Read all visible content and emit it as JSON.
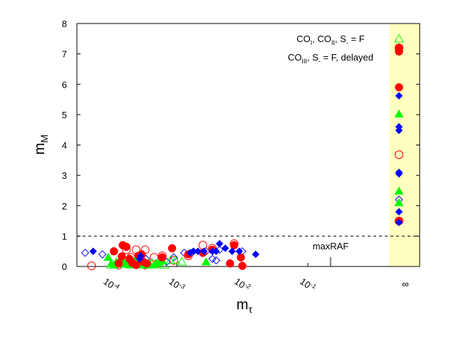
{
  "chart_data": {
    "type": "scatter",
    "xlabel": "m",
    "xlabel_sub": "τ",
    "ylabel": "m",
    "ylabel_sub": "M",
    "x_scale": "log",
    "xlim": [
      3e-05,
      1
    ],
    "ylim": [
      0,
      8
    ],
    "x_ticks": [
      {
        "base": "10",
        "exp": "-4",
        "value": 0.0001
      },
      {
        "base": "10",
        "exp": "-3",
        "value": 0.001
      },
      {
        "base": "10",
        "exp": "-2",
        "value": 0.01
      },
      {
        "base": "10",
        "exp": "-1",
        "value": 0.1
      }
    ],
    "x_infinity_label": "∞",
    "y_ticks": [
      "0",
      "1",
      "2",
      "3",
      "4",
      "5",
      "6",
      "7",
      "8"
    ],
    "grid": false,
    "legend_position": "top-right",
    "legend": {
      "line1": {
        "prefix_1": "CO",
        "sub_1": "I",
        "prefix_2": ", CO",
        "sub_2": "II",
        "prefix_3": ", S",
        "sub_3": "-",
        "suffix": " = F"
      },
      "line2": {
        "prefix_1": "CO",
        "sub_1": "III",
        "prefix_2": ", S",
        "sub_2": "-",
        "suffix": " = F, delayed"
      }
    },
    "reference_line": {
      "y": 1,
      "label": "maxRAF"
    },
    "infinity_band_color": "#ffffc0",
    "colors": {
      "red": "#ff0000",
      "blue": "#0000ff",
      "green": "#00ff00"
    },
    "series": [
      {
        "marker": "circle",
        "filled": true,
        "color": "red",
        "points": [
          [
            0.00011,
            0.5
          ],
          [
            0.00013,
            0.1
          ],
          [
            0.000145,
            0.33
          ],
          [
            0.00015,
            0.7
          ],
          [
            0.00017,
            0.65
          ],
          [
            0.00019,
            0.25
          ],
          [
            0.00021,
            0.12
          ],
          [
            0.00024,
            0.05
          ],
          [
            0.00026,
            0.35
          ],
          [
            0.00029,
            0.4
          ],
          [
            0.00031,
            0.15
          ],
          [
            0.00035,
            0.1
          ],
          [
            0.0006,
            0.3
          ],
          [
            0.00085,
            0.6
          ],
          [
            0.0015,
            0.4
          ],
          [
            0.0025,
            0.45
          ],
          [
            0.0035,
            0.55
          ],
          [
            0.0065,
            0.1
          ],
          [
            0.0075,
            0.7
          ],
          [
            0.0095,
            0.3
          ],
          [
            0.01,
            0.02
          ]
        ],
        "infinity": [
          7.08,
          7.2,
          5.9,
          1.5
        ]
      },
      {
        "marker": "circle",
        "filled": false,
        "color": "red",
        "points": [
          [
            5e-05,
            0.02
          ],
          [
            0.00013,
            0.05
          ],
          [
            0.00017,
            0.55
          ],
          [
            0.0002,
            0.3
          ],
          [
            0.00024,
            0.55
          ],
          [
            0.00028,
            0.35
          ],
          [
            0.00033,
            0.55
          ],
          [
            0.00033,
            0.05
          ],
          [
            0.00045,
            0.3
          ],
          [
            0.0005,
            0.08
          ],
          [
            0.0006,
            0.35
          ],
          [
            0.0009,
            0.2
          ],
          [
            0.0015,
            0.35
          ],
          [
            0.0025,
            0.7
          ],
          [
            0.0035,
            0.6
          ],
          [
            0.0075,
            0.75
          ]
        ],
        "infinity": [
          7.2,
          3.68,
          1.5
        ]
      },
      {
        "marker": "diamond",
        "filled": true,
        "color": "blue",
        "points": [
          [
            5.3e-05,
            0.5
          ],
          [
            0.00027,
            0.25
          ],
          [
            0.00028,
            0.35
          ],
          [
            0.0016,
            0.45
          ],
          [
            0.0018,
            0.5
          ],
          [
            0.0021,
            0.5
          ],
          [
            0.0026,
            0.5
          ],
          [
            0.0035,
            0.5
          ],
          [
            0.004,
            0.5
          ],
          [
            0.0045,
            0.75
          ],
          [
            0.0055,
            0.6
          ],
          [
            0.007,
            0.5
          ],
          [
            0.009,
            0.5
          ],
          [
            0.016,
            0.4
          ]
        ],
        "infinity": [
          5.62,
          4.6,
          4.48,
          3.1,
          3.05,
          1.8,
          1.45
        ]
      },
      {
        "marker": "diamond",
        "filled": false,
        "color": "blue",
        "points": [
          [
            4e-05,
            0.45
          ],
          [
            7.35e-05,
            0.4
          ],
          [
            0.00024,
            0.2
          ],
          [
            0.00034,
            0.25
          ],
          [
            0.0007,
            0.15
          ],
          [
            0.0009,
            0.3
          ],
          [
            0.0013,
            0.45
          ],
          [
            0.0017,
            0.45
          ],
          [
            0.0028,
            0.5
          ],
          [
            0.0035,
            0.25
          ],
          [
            0.004,
            0.2
          ],
          [
            0.0045,
            0.55
          ],
          [
            0.01,
            0.5
          ]
        ],
        "infinity": [
          2.2
        ]
      },
      {
        "marker": "triangle",
        "filled": true,
        "color": "green",
        "points": [
          [
            9e-05,
            0.3
          ],
          [
            0.0001,
            0.1
          ],
          [
            0.00011,
            0.05
          ],
          [
            0.00012,
            0.15
          ],
          [
            0.00013,
            0.1
          ],
          [
            0.00015,
            0.2
          ],
          [
            0.00017,
            0.1
          ],
          [
            0.00019,
            0.05
          ],
          [
            0.00021,
            0.12
          ],
          [
            0.00023,
            0.2
          ],
          [
            0.00025,
            0.08
          ],
          [
            0.00028,
            0.15
          ],
          [
            0.00031,
            0.1
          ],
          [
            0.00034,
            0.05
          ],
          [
            0.00038,
            0.1
          ],
          [
            0.00045,
            0.05
          ],
          [
            0.0005,
            0.1
          ],
          [
            0.00055,
            0.15
          ],
          [
            0.0006,
            0.2
          ],
          [
            0.0028,
            0.15
          ]
        ],
        "infinity": [
          7.22,
          5.02,
          2.48,
          2.1
        ]
      },
      {
        "marker": "triangle",
        "filled": false,
        "color": "green",
        "points": [
          [
            0.0001,
            0.05
          ],
          [
            0.00013,
            0.12
          ],
          [
            0.00016,
            0.08
          ],
          [
            0.00019,
            0.15
          ],
          [
            0.00022,
            0.1
          ],
          [
            0.00026,
            0.05
          ],
          [
            0.0003,
            0.08
          ],
          [
            0.00036,
            0.05
          ],
          [
            0.00042,
            0.12
          ],
          [
            0.0005,
            0.1
          ],
          [
            0.00065,
            0.05
          ],
          [
            0.0008,
            0.2
          ],
          [
            0.00095,
            0.2
          ],
          [
            0.0012,
            0.15
          ]
        ],
        "infinity": [
          7.5
        ]
      }
    ]
  }
}
